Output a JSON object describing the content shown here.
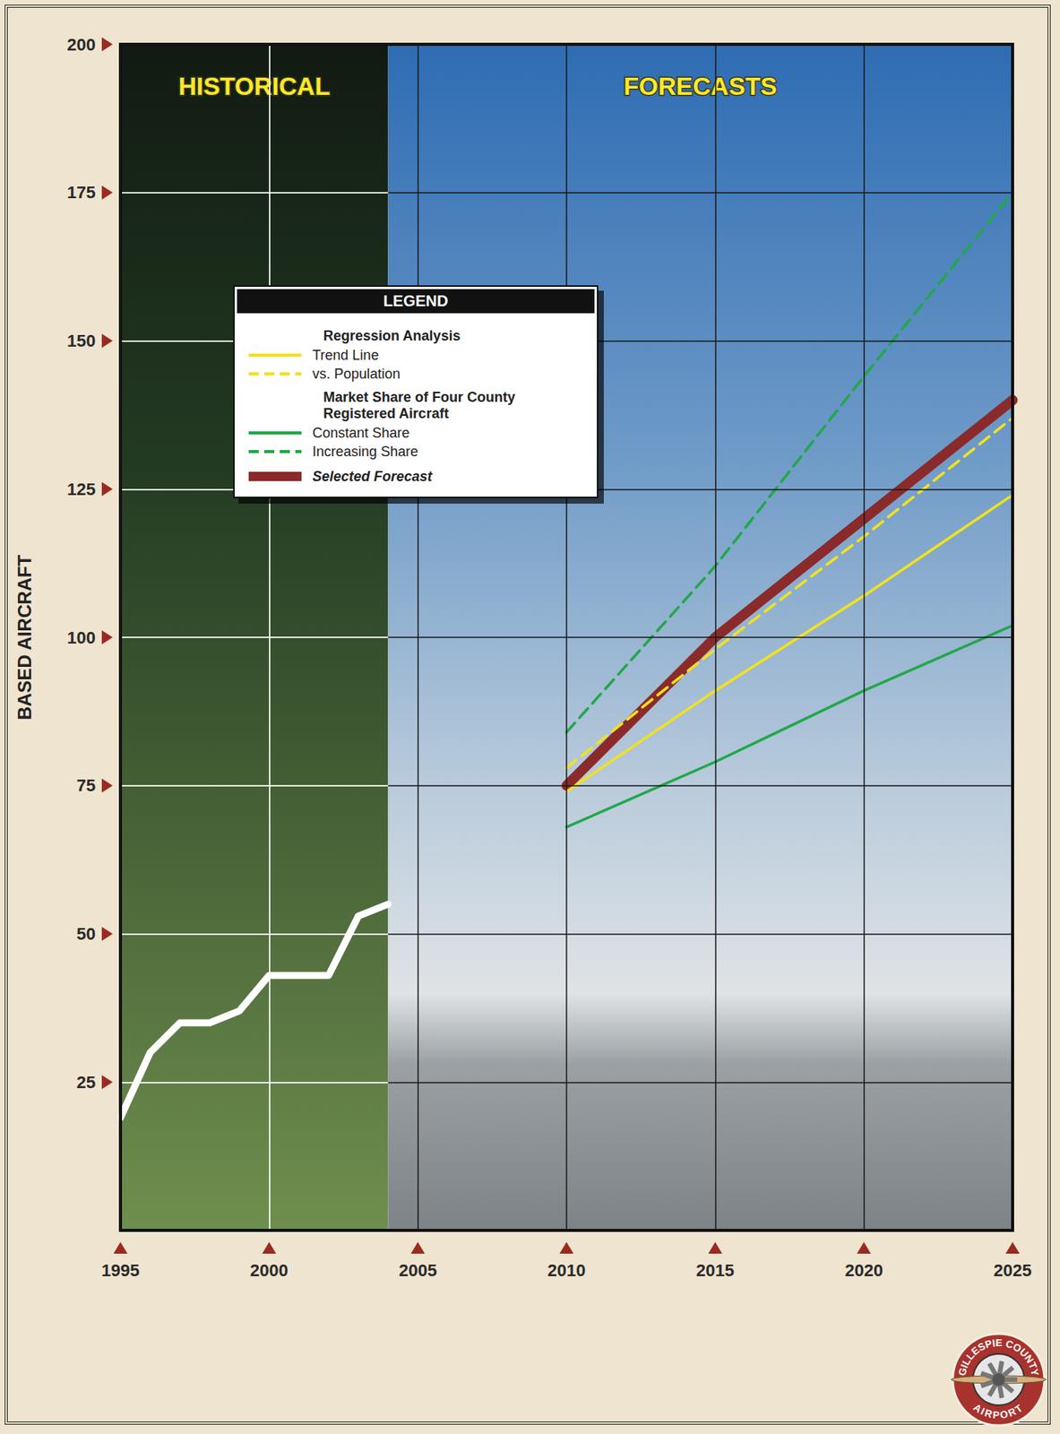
{
  "chart_data": {
    "type": "line",
    "y_label": "BASED AIRCRAFT",
    "regions": [
      "HISTORICAL",
      "FORECASTS"
    ],
    "xlim": [
      1995,
      2025
    ],
    "xticks": [
      1995,
      2000,
      2005,
      2010,
      2015,
      2020,
      2025
    ],
    "ylim": [
      0,
      200
    ],
    "yticks": [
      25,
      50,
      75,
      100,
      125,
      150,
      175,
      200
    ],
    "grid": true,
    "legend": "upper left",
    "legend_title": "LEGEND",
    "series": [
      {
        "x": [
          1995,
          1996,
          1997,
          1998,
          1999,
          2000,
          2001,
          2002,
          2003,
          2004
        ],
        "values": [
          19,
          30,
          35,
          35,
          37,
          43,
          43,
          43,
          53,
          55
        ],
        "color": "#ffffff",
        "line_style": "solid"
      },
      {
        "name": "Trend Line",
        "group": "Regression Analysis",
        "x": [
          2010,
          2015,
          2020,
          2025
        ],
        "values": [
          74,
          91,
          107,
          124
        ],
        "color": "#f2e21b",
        "line_style": "solid"
      },
      {
        "name": "vs. Population",
        "group": "Regression Analysis",
        "x": [
          2010,
          2015,
          2020,
          2025
        ],
        "values": [
          78,
          98,
          117,
          137
        ],
        "color": "#f2e21b",
        "line_style": "dashed"
      },
      {
        "name": "Constant Share",
        "group": "Market Share of Four County Registered Aircraft",
        "x": [
          2010,
          2015,
          2020,
          2025
        ],
        "values": [
          68,
          79,
          91,
          102
        ],
        "color": "#22a84a",
        "line_style": "solid"
      },
      {
        "name": "Increasing Share",
        "group": "Market Share of Four County Registered Aircraft",
        "x": [
          2010,
          2015,
          2020,
          2025
        ],
        "values": [
          84,
          112,
          144,
          175
        ],
        "color": "#22a84a",
        "line_style": "dashed"
      },
      {
        "name": "Selected Forecast",
        "x": [
          2010,
          2015,
          2020,
          2025
        ],
        "values": [
          75,
          100,
          120,
          140
        ],
        "color": "#8b2a2a",
        "line_style": "thick"
      }
    ],
    "logo": {
      "top": "GILLESPIE COUNTY",
      "bottom": "AIRPORT"
    }
  }
}
